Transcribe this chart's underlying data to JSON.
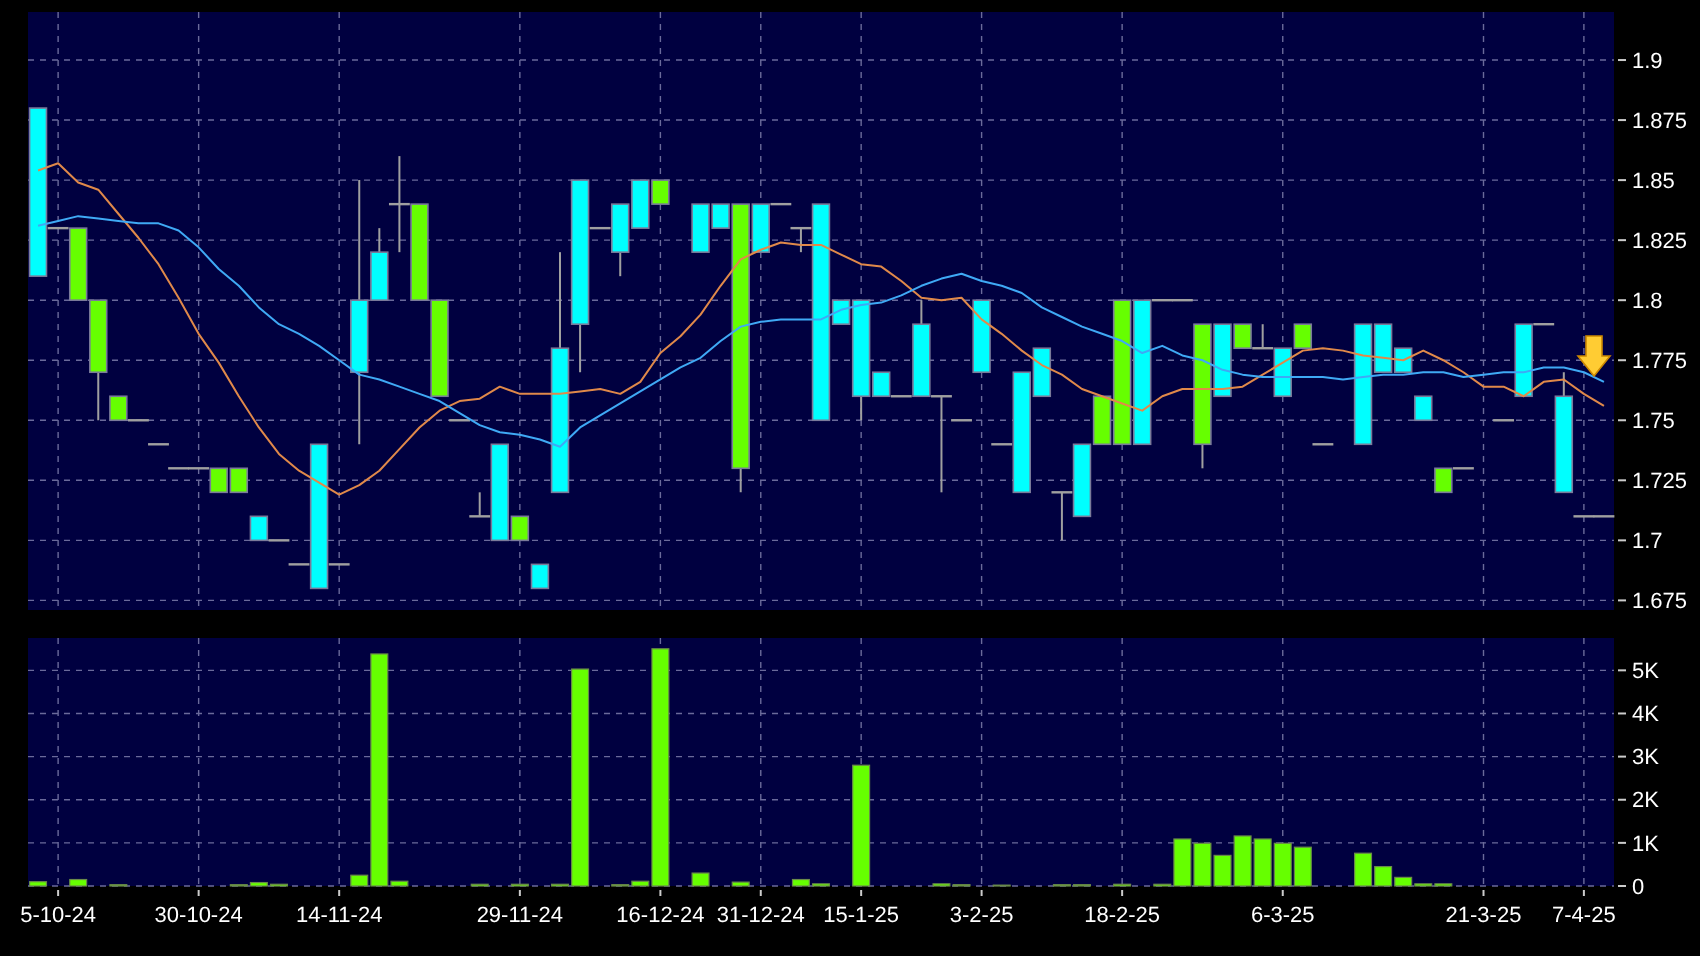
{
  "chart_data": [
    {
      "type": "candlestick",
      "categories": [
        null,
        null,
        null,
        null,
        null,
        null,
        null,
        null,
        null,
        null,
        null,
        null,
        null,
        null,
        null,
        null,
        null,
        null,
        null,
        null,
        null,
        null,
        null,
        null,
        null,
        null,
        null,
        null,
        null,
        null,
        null,
        null,
        null,
        null,
        null,
        null,
        null,
        null,
        null,
        null,
        null,
        null,
        null,
        null,
        null,
        null,
        null,
        null,
        null,
        null,
        null,
        null,
        null,
        null,
        null,
        null,
        null,
        null,
        null,
        null,
        null,
        null,
        null,
        null,
        null,
        null,
        null,
        null,
        null,
        null,
        null,
        null,
        null,
        null,
        null,
        null,
        null,
        null,
        null
      ],
      "ohlc": [
        [
          1.88,
          1.88,
          1.81,
          1.81
        ],
        [
          1.83,
          1.83,
          1.83,
          1.83
        ],
        [
          1.8,
          1.83,
          1.8,
          1.83
        ],
        [
          1.77,
          1.8,
          1.75,
          1.8
        ],
        [
          1.75,
          1.76,
          1.75,
          1.76
        ],
        [
          1.75,
          1.75,
          1.75,
          1.75
        ],
        [
          1.74,
          1.74,
          1.74,
          1.74
        ],
        [
          1.73,
          1.73,
          1.73,
          1.73
        ],
        [
          1.73,
          1.73,
          1.73,
          1.73
        ],
        [
          1.72,
          1.73,
          1.72,
          1.73
        ],
        [
          1.72,
          1.73,
          1.72,
          1.73
        ],
        [
          1.71,
          1.71,
          1.7,
          1.7
        ],
        [
          1.7,
          1.7,
          1.7,
          1.7
        ],
        [
          1.69,
          1.69,
          1.69,
          1.69
        ],
        [
          1.74,
          1.74,
          1.68,
          1.68
        ],
        [
          1.69,
          1.69,
          1.69,
          1.69
        ],
        [
          1.8,
          1.85,
          1.74,
          1.77
        ],
        [
          1.82,
          1.83,
          1.8,
          1.8
        ],
        [
          1.84,
          1.86,
          1.82,
          1.84
        ],
        [
          1.8,
          1.84,
          1.8,
          1.84
        ],
        [
          1.76,
          1.8,
          1.76,
          1.8
        ],
        [
          1.75,
          1.75,
          1.75,
          1.75
        ],
        [
          1.71,
          1.72,
          1.71,
          1.71
        ],
        [
          1.74,
          1.74,
          1.7,
          1.7
        ],
        [
          1.7,
          1.71,
          1.7,
          1.71
        ],
        [
          1.69,
          1.69,
          1.68,
          1.68
        ],
        [
          1.78,
          1.82,
          1.72,
          1.72
        ],
        [
          1.85,
          1.85,
          1.77,
          1.79
        ],
        [
          1.83,
          1.83,
          1.83,
          1.83
        ],
        [
          1.84,
          1.84,
          1.81,
          1.82
        ],
        [
          1.85,
          1.85,
          1.83,
          1.83
        ],
        [
          1.84,
          1.85,
          1.84,
          1.85
        ],
        null,
        [
          1.84,
          1.84,
          1.82,
          1.82
        ],
        [
          1.84,
          1.84,
          1.83,
          1.83
        ],
        [
          1.73,
          1.84,
          1.72,
          1.84
        ],
        [
          1.84,
          1.84,
          1.82,
          1.82
        ],
        [
          1.84,
          1.84,
          1.84,
          1.84
        ],
        [
          1.83,
          1.83,
          1.82,
          1.83
        ],
        [
          1.84,
          1.84,
          1.75,
          1.75
        ],
        [
          1.8,
          1.8,
          1.79,
          1.79
        ],
        [
          1.8,
          1.8,
          1.75,
          1.76
        ],
        [
          1.77,
          1.77,
          1.76,
          1.76
        ],
        [
          1.76,
          1.76,
          1.76,
          1.76
        ],
        [
          1.79,
          1.8,
          1.76,
          1.76
        ],
        [
          1.76,
          1.76,
          1.72,
          1.76
        ],
        [
          1.75,
          1.75,
          1.75,
          1.75
        ],
        [
          1.8,
          1.8,
          1.77,
          1.77
        ],
        [
          1.74,
          1.74,
          1.74,
          1.74
        ],
        [
          1.77,
          1.77,
          1.72,
          1.72
        ],
        [
          1.78,
          1.78,
          1.76,
          1.76
        ],
        [
          1.72,
          1.72,
          1.7,
          1.72
        ],
        [
          1.74,
          1.74,
          1.71,
          1.71
        ],
        [
          1.74,
          1.76,
          1.74,
          1.76
        ],
        [
          1.74,
          1.8,
          1.74,
          1.8
        ],
        [
          1.8,
          1.8,
          1.74,
          1.74
        ],
        [
          1.8,
          1.8,
          1.8,
          1.8
        ],
        [
          1.8,
          1.8,
          1.8,
          1.8
        ],
        [
          1.74,
          1.79,
          1.73,
          1.79
        ],
        [
          1.79,
          1.79,
          1.76,
          1.76
        ],
        [
          1.78,
          1.79,
          1.78,
          1.79
        ],
        [
          1.78,
          1.79,
          1.78,
          1.78
        ],
        [
          1.78,
          1.78,
          1.76,
          1.76
        ],
        [
          1.78,
          1.79,
          1.78,
          1.79
        ],
        [
          1.74,
          1.74,
          1.74,
          1.74
        ],
        null,
        [
          1.79,
          1.79,
          1.74,
          1.74
        ],
        [
          1.79,
          1.79,
          1.77,
          1.77
        ],
        [
          1.78,
          1.78,
          1.77,
          1.77
        ],
        [
          1.76,
          1.76,
          1.75,
          1.75
        ],
        [
          1.72,
          1.73,
          1.72,
          1.73
        ],
        [
          1.73,
          1.73,
          1.73,
          1.73
        ],
        null,
        [
          1.75,
          1.75,
          1.75,
          1.75
        ],
        [
          1.79,
          1.79,
          1.76,
          1.76
        ],
        [
          1.79,
          1.79,
          1.79,
          1.79
        ],
        [
          1.76,
          1.77,
          1.72,
          1.72
        ],
        [
          1.71,
          1.71,
          1.71,
          1.71
        ],
        [
          1.71,
          1.71,
          1.71,
          1.71
        ]
      ],
      "colors": [
        "#00ffff",
        "#a0a0a0",
        "#66ff00",
        "#66ff00",
        "#66ff00",
        "#a0a0a0",
        "#a0a0a0",
        "#a0a0a0",
        "#a0a0a0",
        "#66ff00",
        "#66ff00",
        "#00ffff",
        "#a0a0a0",
        "#a0a0a0",
        "#00ffff",
        "#a0a0a0",
        "#00ffff",
        "#00ffff",
        "#a0a0a0",
        "#66ff00",
        "#66ff00",
        "#a0a0a0",
        "#a0a0a0",
        "#00ffff",
        "#66ff00",
        "#00ffff",
        "#00ffff",
        "#00ffff",
        "#a0a0a0",
        "#00ffff",
        "#00ffff",
        "#66ff00",
        null,
        "#00ffff",
        "#00ffff",
        "#66ff00",
        "#00ffff",
        "#a0a0a0",
        "#a0a0a0",
        "#00ffff",
        "#00ffff",
        "#00ffff",
        "#00ffff",
        "#a0a0a0",
        "#00ffff",
        "#a0a0a0",
        "#a0a0a0",
        "#00ffff",
        "#a0a0a0",
        "#00ffff",
        "#00ffff",
        "#a0a0a0",
        "#00ffff",
        "#66ff00",
        "#66ff00",
        "#00ffff",
        "#a0a0a0",
        "#a0a0a0",
        "#66ff00",
        "#00ffff",
        "#66ff00",
        "#a0a0a0",
        "#00ffff",
        "#66ff00",
        "#a0a0a0",
        null,
        "#00ffff",
        "#00ffff",
        "#00ffff",
        "#00ffff",
        "#66ff00",
        "#a0a0a0",
        null,
        "#a0a0a0",
        "#00ffff",
        "#a0a0a0",
        "#00ffff",
        "#a0a0a0",
        "#a0a0a0"
      ],
      "series": [
        {
          "type": "line",
          "color": "#e0894a",
          "values": [
            1.854,
            1.857,
            1.849,
            1.846,
            1.836,
            1.826,
            1.815,
            1.801,
            1.786,
            1.774,
            1.76,
            1.747,
            1.736,
            1.729,
            1.724,
            1.719,
            1.723,
            1.729,
            1.738,
            1.747,
            1.754,
            1.758,
            1.759,
            1.764,
            1.761,
            1.761,
            1.761,
            1.762,
            1.763,
            1.761,
            1.766,
            1.778,
            1.785,
            1.794,
            1.806,
            1.817,
            1.821,
            1.824,
            1.823,
            1.823,
            1.819,
            1.815,
            1.814,
            1.808,
            1.801,
            1.8,
            1.801,
            1.792,
            1.786,
            1.779,
            1.773,
            1.769,
            1.763,
            1.76,
            1.757,
            1.754,
            1.76,
            1.763,
            1.763,
            1.763,
            1.764,
            1.769,
            1.774,
            1.779,
            1.78,
            1.779,
            1.777,
            1.776,
            1.775,
            1.779,
            1.775,
            1.77,
            1.764,
            1.764,
            1.76,
            1.766,
            1.767,
            1.761,
            1.756
          ]
        },
        {
          "type": "line",
          "color": "#3fa9f5",
          "values": [
            1.831,
            1.833,
            1.835,
            1.834,
            1.833,
            1.832,
            1.832,
            1.829,
            1.822,
            1.813,
            1.806,
            1.797,
            1.79,
            1.786,
            1.781,
            1.775,
            1.769,
            1.767,
            1.764,
            1.761,
            1.758,
            1.753,
            1.748,
            1.745,
            1.744,
            1.742,
            1.739,
            1.747,
            1.752,
            1.757,
            1.762,
            1.767,
            1.772,
            1.776,
            1.783,
            1.789,
            1.791,
            1.792,
            1.792,
            1.792,
            1.796,
            1.798,
            1.799,
            1.802,
            1.806,
            1.809,
            1.811,
            1.808,
            1.806,
            1.803,
            1.797,
            1.793,
            1.789,
            1.786,
            1.783,
            1.778,
            1.781,
            1.777,
            1.775,
            1.771,
            1.769,
            1.768,
            1.768,
            1.768,
            1.768,
            1.767,
            1.768,
            1.769,
            1.769,
            1.77,
            1.77,
            1.768,
            1.769,
            1.77,
            1.77,
            1.772,
            1.772,
            1.77,
            1.766
          ]
        }
      ],
      "ylim": [
        1.671,
        1.92
      ],
      "yticks": [
        1.675,
        1.7,
        1.725,
        1.75,
        1.775,
        1.8,
        1.825,
        1.85,
        1.875,
        1.9
      ],
      "grid": true,
      "tick_labels": "y"
    },
    {
      "type": "bar",
      "categories": [
        null,
        "5-10-24",
        null,
        null,
        null,
        null,
        null,
        null,
        "30-10-24",
        null,
        null,
        null,
        null,
        null,
        null,
        "14-11-24",
        null,
        null,
        null,
        null,
        null,
        null,
        null,
        null,
        "29-11-24",
        null,
        null,
        null,
        null,
        null,
        null,
        "16-12-24",
        null,
        null,
        null,
        null,
        "31-12-24",
        null,
        null,
        null,
        null,
        "15-1-25",
        null,
        null,
        null,
        null,
        null,
        "3-2-25",
        null,
        null,
        null,
        null,
        null,
        null,
        "18-2-25",
        null,
        null,
        null,
        null,
        null,
        null,
        null,
        "6-3-25",
        null,
        null,
        null,
        null,
        null,
        null,
        null,
        null,
        null,
        "21-3-25",
        null,
        null,
        null,
        null,
        "7-4-25",
        null
      ],
      "values": [
        100,
        0,
        150,
        0,
        30,
        0,
        0,
        0,
        0,
        0,
        30,
        80,
        40,
        0,
        0,
        0,
        250,
        5380,
        110,
        0,
        0,
        0,
        40,
        0,
        40,
        0,
        40,
        5030,
        0,
        30,
        110,
        5500,
        0,
        300,
        0,
        90,
        0,
        0,
        150,
        50,
        0,
        2800,
        0,
        0,
        0,
        50,
        30,
        0,
        20,
        0,
        0,
        30,
        30,
        0,
        40,
        0,
        40,
        1090,
        990,
        710,
        1160,
        1090,
        990,
        900,
        0,
        0,
        760,
        450,
        200,
        50,
        50,
        0,
        0,
        0,
        0,
        0,
        0,
        0,
        0
      ],
      "color": "#66ff00",
      "ylim": [
        0,
        5750
      ],
      "yticks": [
        0,
        {
          "value": 1000,
          "label": "1K"
        },
        {
          "value": 2000,
          "label": "2K"
        },
        {
          "value": 3000,
          "label": "3K"
        },
        {
          "value": 4000,
          "label": "4K"
        },
        {
          "value": 5000,
          "label": "5K"
        }
      ],
      "grid": true
    }
  ]
}
